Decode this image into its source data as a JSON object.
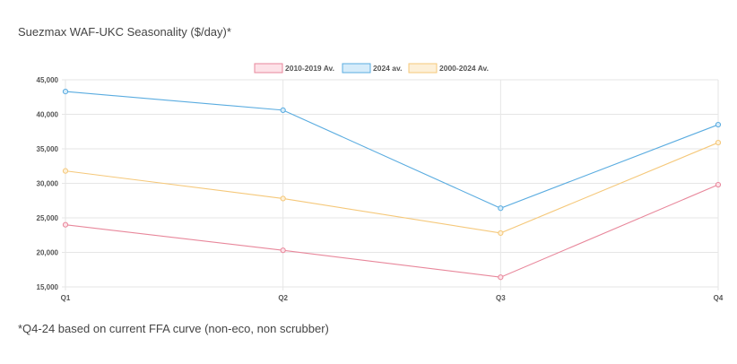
{
  "title": "Suezmax WAF-UKC Seasonality ($/day)*",
  "footnote": "*Q4-24 based on current FFA curve (non-eco, non scrubber)",
  "chart_data": {
    "type": "line",
    "title": "Suezmax WAF-UKC Seasonality ($/day)*",
    "xlabel": "",
    "ylabel": "",
    "categories": [
      "Q1",
      "Q2",
      "Q3",
      "Q4"
    ],
    "ylim": [
      15000,
      45000
    ],
    "yticks": [
      15000,
      20000,
      25000,
      30000,
      35000,
      40000,
      45000
    ],
    "ytick_labels": [
      "15,000",
      "20,000",
      "25,000",
      "30,000",
      "35,000",
      "40,000",
      "45,000"
    ],
    "grid": true,
    "legend_position": "top-center",
    "series": [
      {
        "name": "2010-2019 Av.",
        "values": [
          24000,
          20300,
          16400,
          29800
        ],
        "color": "#e8879b",
        "fill": "#fde2e8"
      },
      {
        "name": "2024 av.",
        "values": [
          43300,
          40600,
          26400,
          38500
        ],
        "color": "#5aace0",
        "fill": "#d6ecfa"
      },
      {
        "name": "2000-2024 Av.",
        "values": [
          31800,
          27800,
          22800,
          35900
        ],
        "color": "#f5c87a",
        "fill": "#fdf0d8"
      }
    ]
  }
}
